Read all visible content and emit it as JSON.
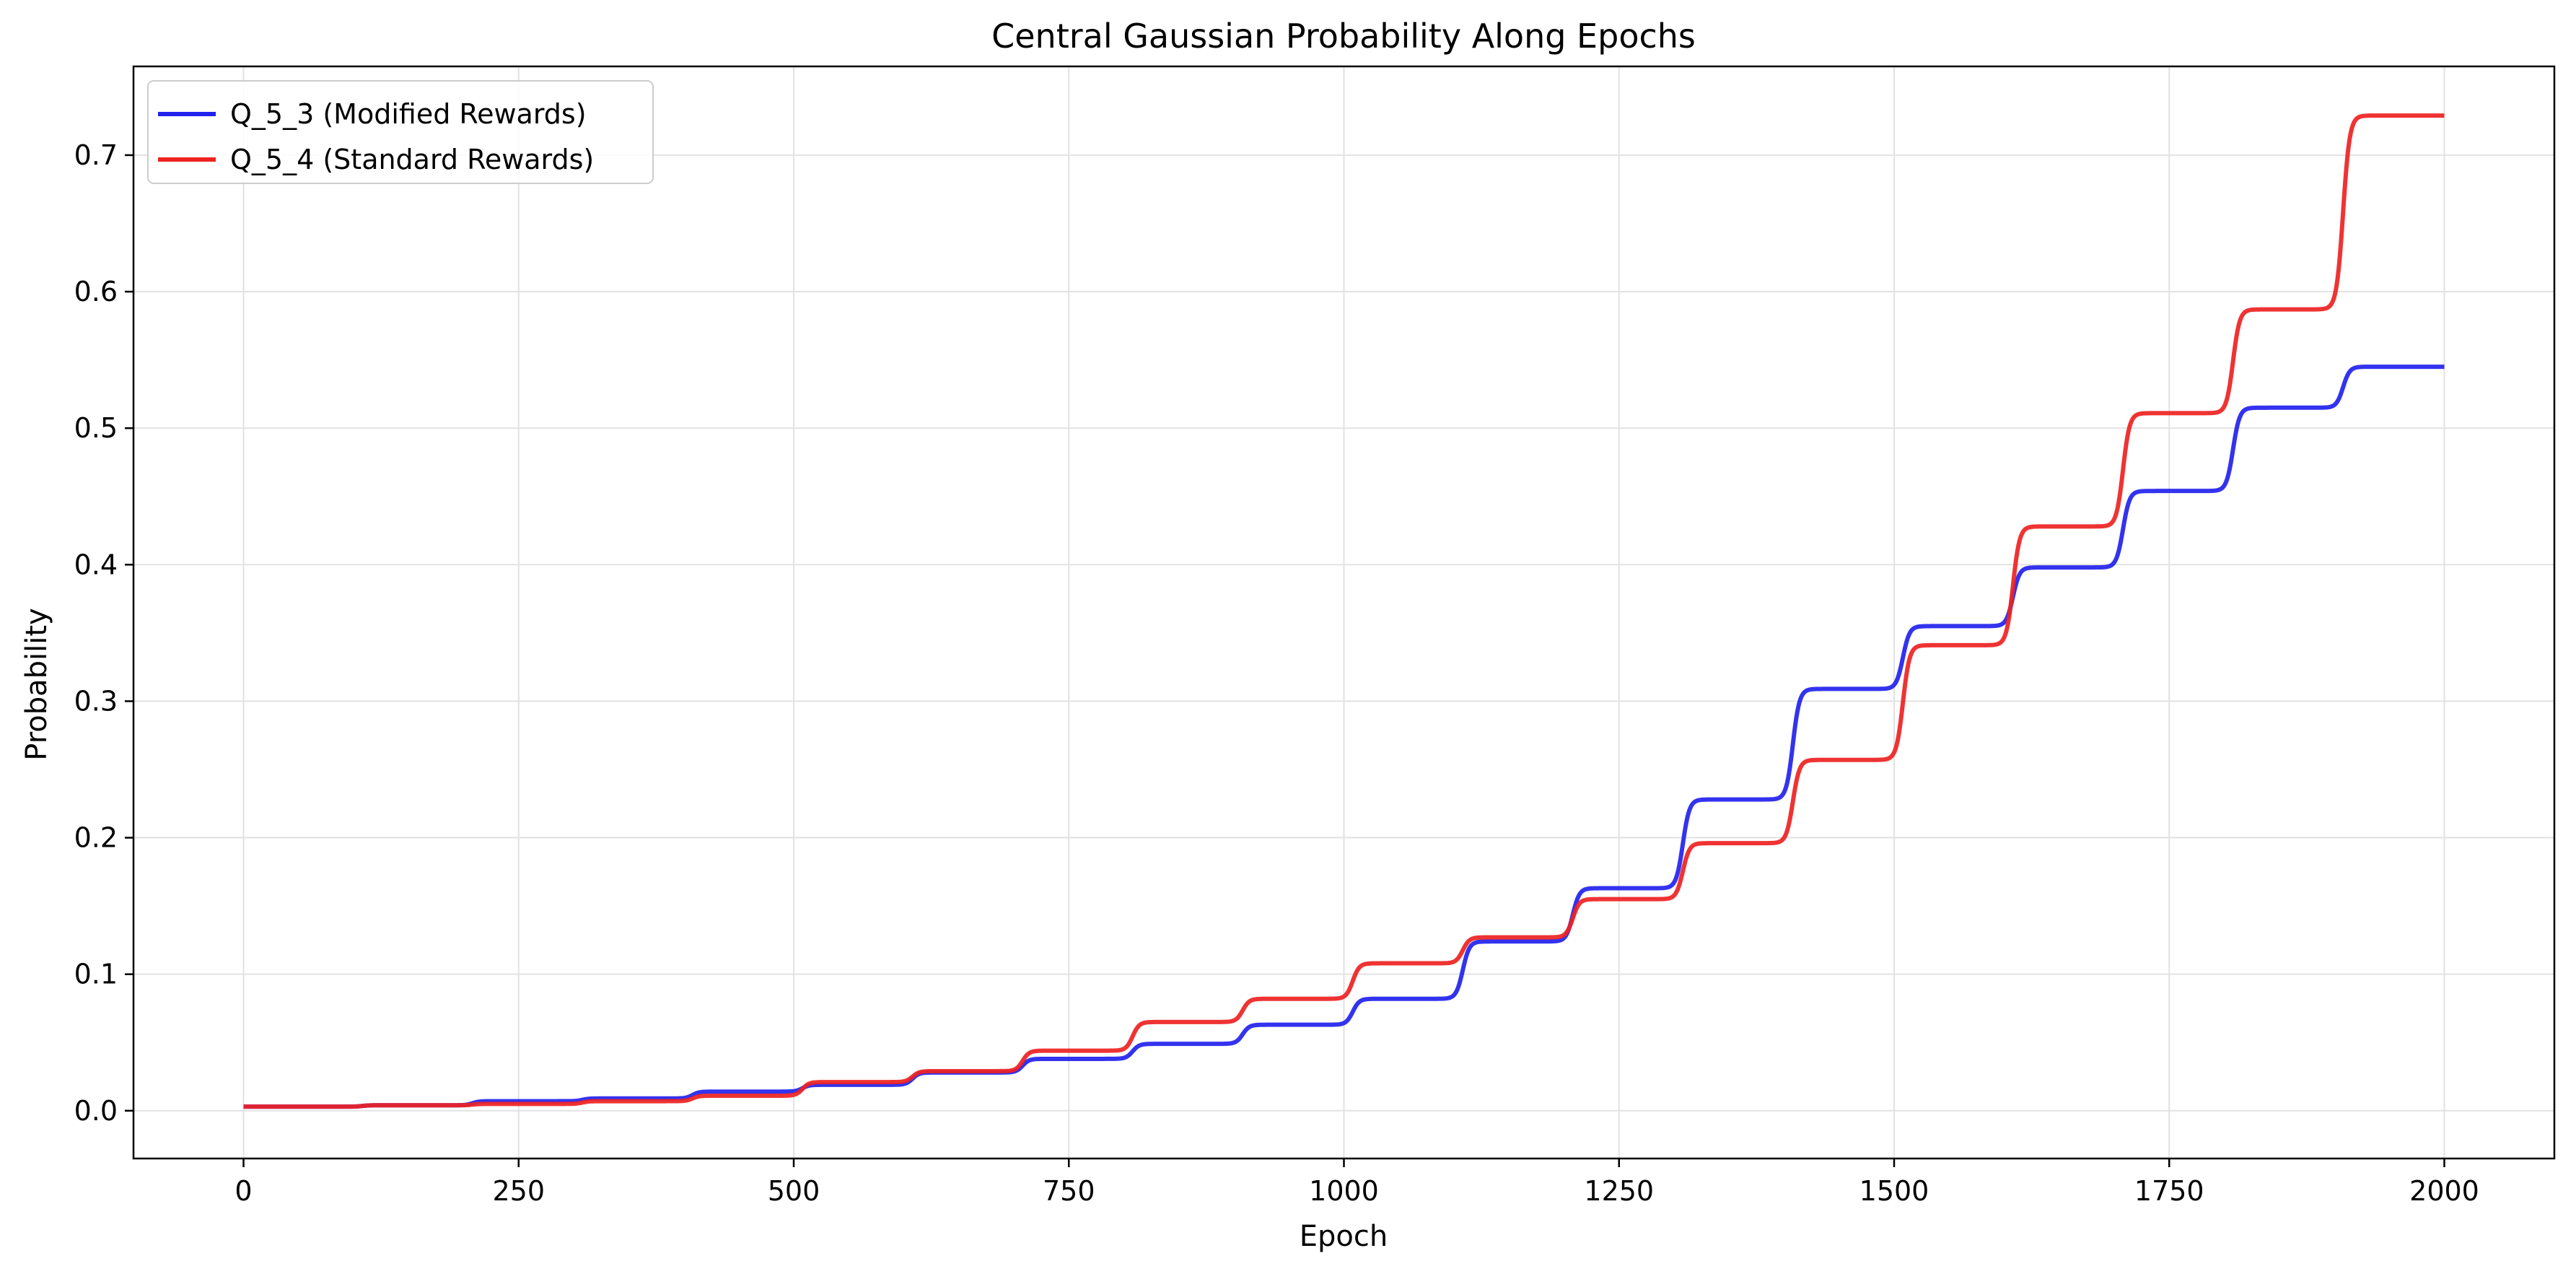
{
  "chart_data": {
    "type": "line",
    "title": "Central Gaussian Probability Along Epochs",
    "xlabel": "Epoch",
    "ylabel": "Probability",
    "xlim": [
      -100,
      2100
    ],
    "ylim": [
      -0.035,
      0.765
    ],
    "xticks": [
      0,
      250,
      500,
      750,
      1000,
      1250,
      1500,
      1750,
      2000
    ],
    "yticks": [
      0.0,
      0.1,
      0.2,
      0.3,
      0.4,
      0.5,
      0.6,
      0.7
    ],
    "xtick_labels": [
      "0",
      "250",
      "500",
      "750",
      "1000",
      "1250",
      "1500",
      "1750",
      "2000"
    ],
    "ytick_labels": [
      "0.0",
      "0.1",
      "0.2",
      "0.3",
      "0.4",
      "0.5",
      "0.6",
      "0.7"
    ],
    "grid": true,
    "legend_position": "top-left",
    "step_epochs": [
      0,
      100,
      200,
      300,
      400,
      500,
      600,
      700,
      800,
      900,
      1000,
      1100,
      1200,
      1300,
      1400,
      1500,
      1600,
      1700,
      1800,
      1900
    ],
    "x_end": 2000,
    "series": [
      {
        "name": "Q_5_3 (Modified Rewards)",
        "color": "#2222ee",
        "plateaus": [
          0.003,
          0.004,
          0.007,
          0.009,
          0.014,
          0.019,
          0.028,
          0.038,
          0.049,
          0.063,
          0.082,
          0.124,
          0.163,
          0.228,
          0.309,
          0.355,
          0.398,
          0.454,
          0.515,
          0.545
        ]
      },
      {
        "name": "Q_5_4 (Standard Rewards)",
        "color": "#ee2222",
        "plateaus": [
          0.003,
          0.004,
          0.005,
          0.007,
          0.011,
          0.021,
          0.029,
          0.044,
          0.065,
          0.082,
          0.108,
          0.127,
          0.155,
          0.196,
          0.257,
          0.341,
          0.428,
          0.511,
          0.587,
          0.729
        ]
      }
    ]
  }
}
